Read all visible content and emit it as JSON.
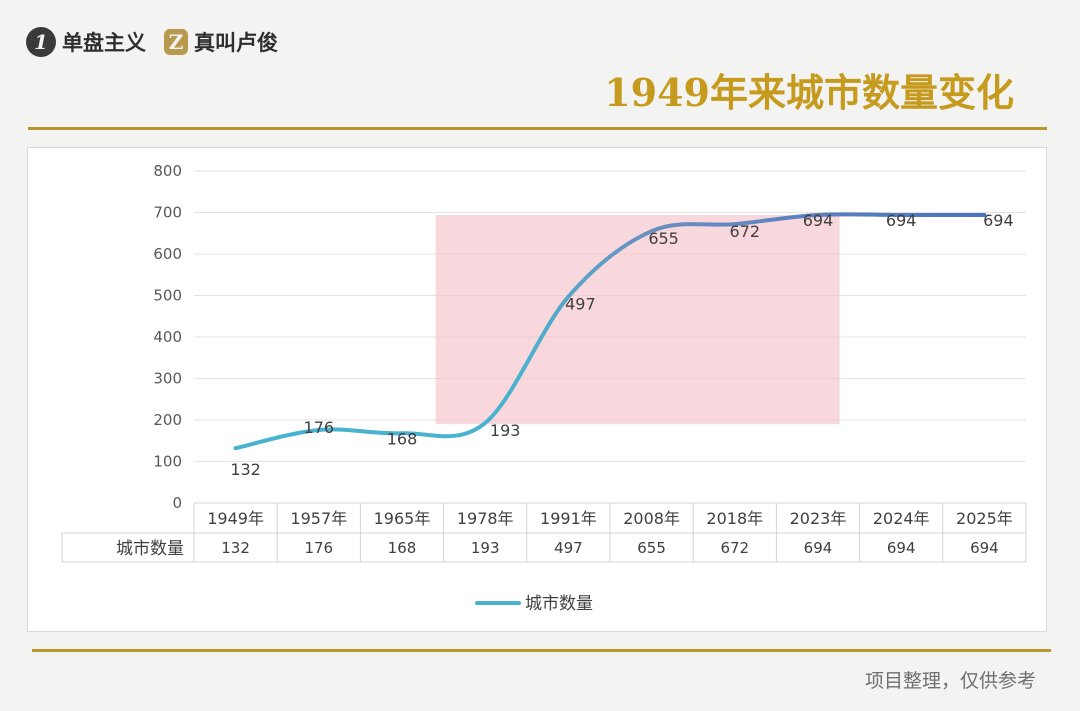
{
  "header": {
    "brand_1_mark": "1",
    "brand_1_name": "单盘主义",
    "brand_2_mark": "Z",
    "brand_2_name": "真叫卢俊",
    "title": "1949年来城市数量变化"
  },
  "footer": {
    "source_note": "项目整理，仅供参考"
  },
  "colors": {
    "gold": "#c69a1c",
    "rule": "#b8962d",
    "line_start": "#49b3cf",
    "line_end": "#4a72c0",
    "highlight": "#f4c3cb"
  },
  "chart_data": {
    "type": "line",
    "categories": [
      "1949年",
      "1957年",
      "1965年",
      "1978年",
      "1991年",
      "2008年",
      "2018年",
      "2023年",
      "2024年",
      "2025年"
    ],
    "series": [
      {
        "name": "城市数量",
        "values": [
          132,
          176,
          168,
          193,
          497,
          655,
          672,
          694,
          694,
          694
        ]
      }
    ],
    "ylim": [
      0,
      800
    ],
    "yticks": [
      0,
      100,
      200,
      300,
      400,
      500,
      600,
      700,
      800
    ],
    "grid": true,
    "data_table": true,
    "legend": "bottom",
    "highlight_region": {
      "from_category": "1978年",
      "to_category": "2023年",
      "y_from": 190,
      "y_to": 694
    }
  }
}
